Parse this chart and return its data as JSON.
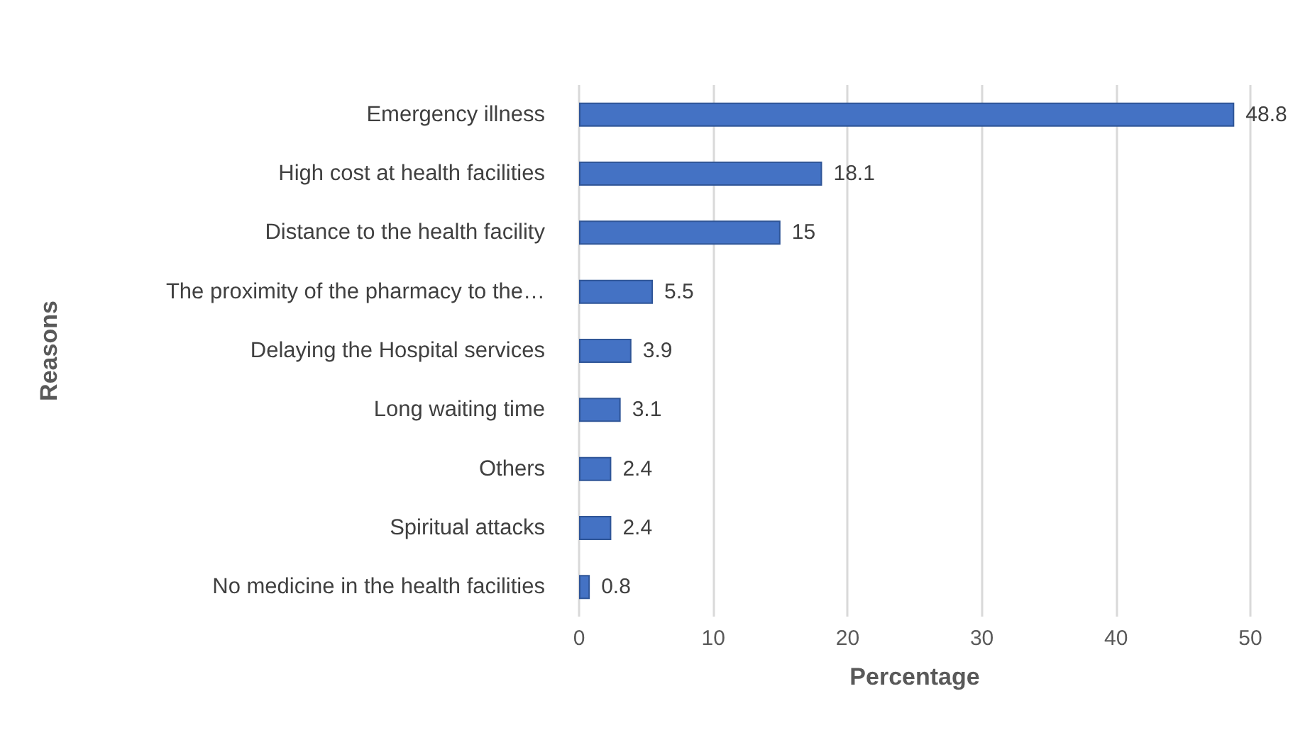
{
  "chart_data": {
    "type": "bar",
    "orientation": "horizontal",
    "xlabel": "Percentage",
    "ylabel": "Reasons",
    "categories": [
      "Emergency illness",
      "High cost at health facilities",
      "Distance to the health facility",
      "The proximity of the pharmacy to the…",
      "Delaying the Hospital services",
      "Long waiting time",
      "Others",
      "Spiritual attacks",
      "No medicine in the health facilities"
    ],
    "values": [
      48.8,
      18.1,
      15,
      5.5,
      3.9,
      3.1,
      2.4,
      2.4,
      0.8
    ],
    "color": "#4472c4",
    "xlim": [
      0,
      50
    ],
    "xticks": [
      0,
      10,
      20,
      30,
      40,
      50
    ],
    "grid": "x",
    "data_labels": true
  }
}
